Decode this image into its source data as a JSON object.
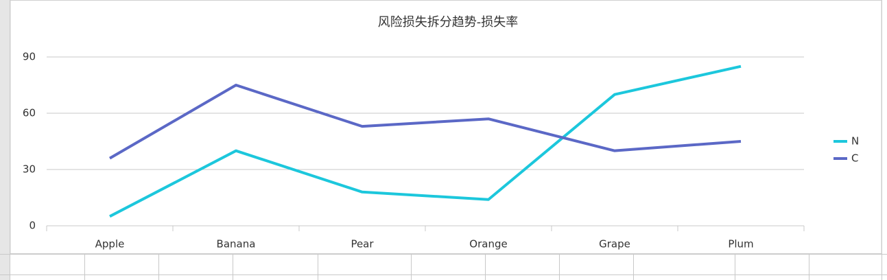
{
  "chart_data": {
    "type": "line",
    "title": "风险损失拆分趋势-损失率",
    "categories": [
      "Apple",
      "Banana",
      "Pear",
      "Orange",
      "Grape",
      "Plum"
    ],
    "series": [
      {
        "name": "N",
        "color": "#1cc7dc",
        "values": [
          5,
          40,
          18,
          14,
          70,
          85
        ]
      },
      {
        "name": "C",
        "color": "#5b68c6",
        "values": [
          36,
          75,
          53,
          57,
          40,
          45
        ]
      }
    ],
    "ylim": [
      0,
      90
    ],
    "yticks": [
      0,
      30,
      60,
      90
    ],
    "grid": true,
    "legend": "right"
  }
}
